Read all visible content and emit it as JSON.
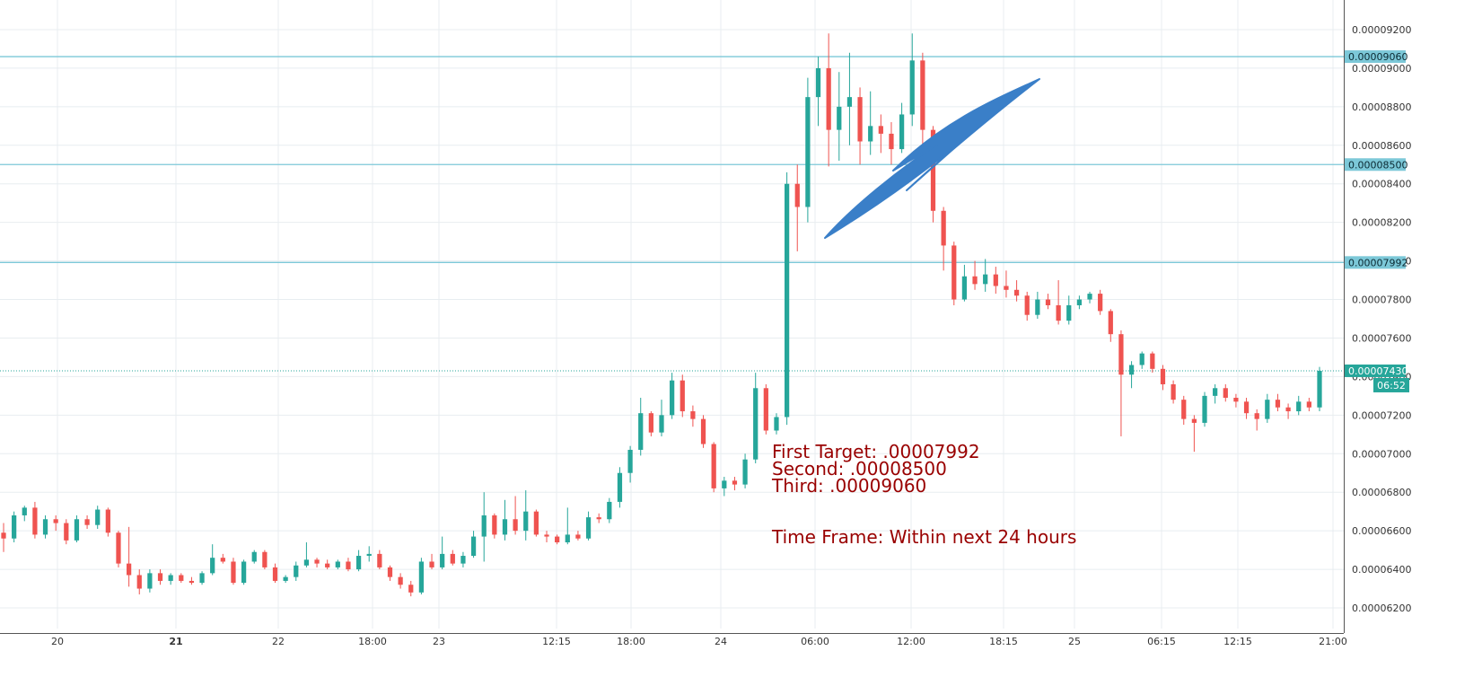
{
  "chart_data": {
    "type": "candlestick",
    "x_ticks": [
      {
        "label": "20",
        "bold": false
      },
      {
        "label": "21",
        "bold": true
      },
      {
        "label": "22",
        "bold": false
      },
      {
        "label": "18:00",
        "bold": false
      },
      {
        "label": "23",
        "bold": false
      },
      {
        "label": "12:15",
        "bold": false
      },
      {
        "label": "18:00",
        "bold": false
      },
      {
        "label": "24",
        "bold": false
      },
      {
        "label": "06:00",
        "bold": false
      },
      {
        "label": "12:00",
        "bold": false
      },
      {
        "label": "18:15",
        "bold": false
      },
      {
        "label": "25",
        "bold": false
      },
      {
        "label": "06:15",
        "bold": false
      },
      {
        "label": "12:15",
        "bold": false
      },
      {
        "label": "21:00",
        "bold": false
      }
    ],
    "y_ticks": [
      "0.00006200",
      "0.00006400",
      "0.00006600",
      "0.00006800",
      "0.00007000",
      "0.00007200",
      "0.00007400",
      "0.00007600",
      "0.00007800",
      "0.00008000",
      "0.00008200",
      "0.00008400",
      "0.00008600",
      "0.00008800",
      "0.00009000",
      "0.00009200"
    ],
    "ylim": [
      6.18e-05,
      9.25e-05
    ],
    "up_color": "#26a69a",
    "down_color": "#ef5350",
    "grid": true,
    "horizontal_lines": [
      {
        "value": 9.06e-05,
        "label": "0.00009060",
        "color": "#7cc8d8"
      },
      {
        "value": 8.5e-05,
        "label": "0.00008500",
        "color": "#7cc8d8"
      },
      {
        "value": 7.992e-05,
        "label": "0.00007992",
        "color": "#7cc8d8"
      }
    ],
    "last_price": {
      "value": 7.43e-05,
      "label": "0.00007430",
      "countdown": "06:52",
      "color": "#26a69a"
    },
    "annotations": [
      "First Target: .00007992",
      "Second: .00008500",
      "Third: .00009060",
      "Time Frame: Within next 24 hours"
    ],
    "annotation_color": "#990000",
    "arrow_color": "#3a7fc8",
    "candles": [
      [
        6.59e-05,
        6.64e-05,
        6.49e-05,
        6.56e-05
      ],
      [
        6.56e-05,
        6.7e-05,
        6.54e-05,
        6.68e-05
      ],
      [
        6.68e-05,
        6.73e-05,
        6.65e-05,
        6.72e-05
      ],
      [
        6.72e-05,
        6.75e-05,
        6.56e-05,
        6.58e-05
      ],
      [
        6.58e-05,
        6.68e-05,
        6.56e-05,
        6.66e-05
      ],
      [
        6.66e-05,
        6.68e-05,
        6.6e-05,
        6.64e-05
      ],
      [
        6.64e-05,
        6.66e-05,
        6.53e-05,
        6.55e-05
      ],
      [
        6.55e-05,
        6.68e-05,
        6.54e-05,
        6.66e-05
      ],
      [
        6.66e-05,
        6.68e-05,
        6.61e-05,
        6.63e-05
      ],
      [
        6.63e-05,
        6.73e-05,
        6.61e-05,
        6.71e-05
      ],
      [
        6.71e-05,
        6.72e-05,
        6.57e-05,
        6.59e-05
      ],
      [
        6.59e-05,
        6.6e-05,
        6.41e-05,
        6.43e-05
      ],
      [
        6.43e-05,
        6.62e-05,
        6.31e-05,
        6.37e-05
      ],
      [
        6.37e-05,
        6.4e-05,
        6.27e-05,
        6.3e-05
      ],
      [
        6.3e-05,
        6.4e-05,
        6.28e-05,
        6.38e-05
      ],
      [
        6.38e-05,
        6.4e-05,
        6.32e-05,
        6.34e-05
      ],
      [
        6.34e-05,
        6.38e-05,
        6.32e-05,
        6.37e-05
      ],
      [
        6.37e-05,
        6.38e-05,
        6.33e-05,
        6.34e-05
      ],
      [
        6.34e-05,
        6.36e-05,
        6.32e-05,
        6.33e-05
      ],
      [
        6.33e-05,
        6.39e-05,
        6.32e-05,
        6.38e-05
      ],
      [
        6.38e-05,
        6.53e-05,
        6.37e-05,
        6.46e-05
      ],
      [
        6.46e-05,
        6.48e-05,
        6.43e-05,
        6.44e-05
      ],
      [
        6.44e-05,
        6.46e-05,
        6.32e-05,
        6.33e-05
      ],
      [
        6.33e-05,
        6.45e-05,
        6.32e-05,
        6.44e-05
      ],
      [
        6.44e-05,
        6.5e-05,
        6.43e-05,
        6.49e-05
      ],
      [
        6.49e-05,
        6.5e-05,
        6.4e-05,
        6.41e-05
      ],
      [
        6.41e-05,
        6.43e-05,
        6.33e-05,
        6.34e-05
      ],
      [
        6.34e-05,
        6.37e-05,
        6.33e-05,
        6.36e-05
      ],
      [
        6.36e-05,
        6.44e-05,
        6.34e-05,
        6.42e-05
      ],
      [
        6.42e-05,
        6.54e-05,
        6.41e-05,
        6.45e-05
      ],
      [
        6.45e-05,
        6.46e-05,
        6.41e-05,
        6.43e-05
      ],
      [
        6.43e-05,
        6.45e-05,
        6.4e-05,
        6.41e-05
      ],
      [
        6.41e-05,
        6.45e-05,
        6.4e-05,
        6.44e-05
      ],
      [
        6.44e-05,
        6.46e-05,
        6.39e-05,
        6.4e-05
      ],
      [
        6.4e-05,
        6.5e-05,
        6.39e-05,
        6.47e-05
      ],
      [
        6.47e-05,
        6.52e-05,
        6.44e-05,
        6.48e-05
      ],
      [
        6.48e-05,
        6.5e-05,
        6.4e-05,
        6.41e-05
      ],
      [
        6.41e-05,
        6.42e-05,
        6.34e-05,
        6.36e-05
      ],
      [
        6.36e-05,
        6.38e-05,
        6.3e-05,
        6.32e-05
      ],
      [
        6.32e-05,
        6.34e-05,
        6.26e-05,
        6.28e-05
      ],
      [
        6.28e-05,
        6.46e-05,
        6.27e-05,
        6.44e-05
      ],
      [
        6.44e-05,
        6.48e-05,
        6.4e-05,
        6.41e-05
      ],
      [
        6.41e-05,
        6.57e-05,
        6.4e-05,
        6.48e-05
      ],
      [
        6.48e-05,
        6.5e-05,
        6.42e-05,
        6.43e-05
      ],
      [
        6.43e-05,
        6.49e-05,
        6.41e-05,
        6.47e-05
      ],
      [
        6.47e-05,
        6.6e-05,
        6.46e-05,
        6.57e-05
      ],
      [
        6.57e-05,
        6.8e-05,
        6.44e-05,
        6.68e-05
      ],
      [
        6.68e-05,
        6.69e-05,
        6.56e-05,
        6.58e-05
      ],
      [
        6.58e-05,
        6.76e-05,
        6.55e-05,
        6.66e-05
      ],
      [
        6.66e-05,
        6.78e-05,
        6.58e-05,
        6.6e-05
      ],
      [
        6.6e-05,
        6.81e-05,
        6.55e-05,
        6.7e-05
      ],
      [
        6.7e-05,
        6.71e-05,
        6.57e-05,
        6.58e-05
      ],
      [
        6.58e-05,
        6.6e-05,
        6.54e-05,
        6.57e-05
      ],
      [
        6.57e-05,
        6.58e-05,
        6.53e-05,
        6.54e-05
      ],
      [
        6.54e-05,
        6.72e-05,
        6.53e-05,
        6.58e-05
      ],
      [
        6.58e-05,
        6.6e-05,
        6.55e-05,
        6.56e-05
      ],
      [
        6.56e-05,
        6.7e-05,
        6.55e-05,
        6.67e-05
      ],
      [
        6.67e-05,
        6.69e-05,
        6.64e-05,
        6.66e-05
      ],
      [
        6.66e-05,
        6.77e-05,
        6.64e-05,
        6.75e-05
      ],
      [
        6.75e-05,
        6.93e-05,
        6.72e-05,
        6.9e-05
      ],
      [
        6.9e-05,
        7.04e-05,
        6.85e-05,
        7.02e-05
      ],
      [
        7.02e-05,
        7.29e-05,
        6.99e-05,
        7.21e-05
      ],
      [
        7.21e-05,
        7.22e-05,
        7.09e-05,
        7.11e-05
      ],
      [
        7.11e-05,
        7.28e-05,
        7.09e-05,
        7.2e-05
      ],
      [
        7.2e-05,
        7.42e-05,
        7.18e-05,
        7.38e-05
      ],
      [
        7.38e-05,
        7.41e-05,
        7.19e-05,
        7.22e-05
      ],
      [
        7.22e-05,
        7.25e-05,
        7.14e-05,
        7.18e-05
      ],
      [
        7.18e-05,
        7.2e-05,
        7.03e-05,
        7.05e-05
      ],
      [
        7.05e-05,
        7.06e-05,
        6.8e-05,
        6.82e-05
      ],
      [
        6.82e-05,
        6.88e-05,
        6.78e-05,
        6.86e-05
      ],
      [
        6.86e-05,
        6.88e-05,
        6.81e-05,
        6.84e-05
      ],
      [
        6.84e-05,
        7e-05,
        6.82e-05,
        6.97e-05
      ],
      [
        6.97e-05,
        7.42e-05,
        6.95e-05,
        7.34e-05
      ],
      [
        7.34e-05,
        7.36e-05,
        7.1e-05,
        7.12e-05
      ],
      [
        7.12e-05,
        7.21e-05,
        7.1e-05,
        7.19e-05
      ],
      [
        7.19e-05,
        8.46e-05,
        7.15e-05,
        8.4e-05
      ],
      [
        8.4e-05,
        8.5e-05,
        8.05e-05,
        8.28e-05
      ],
      [
        8.28e-05,
        8.95e-05,
        8.2e-05,
        8.85e-05
      ],
      [
        8.85e-05,
        9.06e-05,
        8.7e-05,
        9e-05
      ],
      [
        9e-05,
        9.18e-05,
        8.49e-05,
        8.68e-05
      ],
      [
        8.68e-05,
        8.98e-05,
        8.52e-05,
        8.8e-05
      ],
      [
        8.8e-05,
        9.08e-05,
        8.6e-05,
        8.85e-05
      ],
      [
        8.85e-05,
        8.9e-05,
        8.5e-05,
        8.62e-05
      ],
      [
        8.62e-05,
        8.88e-05,
        8.55e-05,
        8.7e-05
      ],
      [
        8.7e-05,
        8.76e-05,
        8.56e-05,
        8.66e-05
      ],
      [
        8.66e-05,
        8.72e-05,
        8.5e-05,
        8.58e-05
      ],
      [
        8.58e-05,
        8.82e-05,
        8.56e-05,
        8.76e-05
      ],
      [
        8.76e-05,
        9.18e-05,
        8.7e-05,
        9.04e-05
      ],
      [
        9.04e-05,
        9.08e-05,
        8.6e-05,
        8.68e-05
      ],
      [
        8.68e-05,
        8.7e-05,
        8.2e-05,
        8.26e-05
      ],
      [
        8.26e-05,
        8.28e-05,
        7.95e-05,
        8.08e-05
      ],
      [
        8.08e-05,
        8.1e-05,
        7.77e-05,
        7.8e-05
      ],
      [
        7.8e-05,
        7.98e-05,
        7.79e-05,
        7.92e-05
      ],
      [
        7.92e-05,
        8e-05,
        7.85e-05,
        7.88e-05
      ],
      [
        7.88e-05,
        8.01e-05,
        7.84e-05,
        7.93e-05
      ],
      [
        7.93e-05,
        7.97e-05,
        7.83e-05,
        7.87e-05
      ],
      [
        7.87e-05,
        7.95e-05,
        7.81e-05,
        7.85e-05
      ],
      [
        7.85e-05,
        7.9e-05,
        7.79e-05,
        7.82e-05
      ],
      [
        7.82e-05,
        7.84e-05,
        7.69e-05,
        7.72e-05
      ],
      [
        7.72e-05,
        7.84e-05,
        7.7e-05,
        7.8e-05
      ],
      [
        7.8e-05,
        7.83e-05,
        7.75e-05,
        7.77e-05
      ],
      [
        7.77e-05,
        7.9e-05,
        7.67e-05,
        7.69e-05
      ],
      [
        7.69e-05,
        7.82e-05,
        7.67e-05,
        7.77e-05
      ],
      [
        7.77e-05,
        7.82e-05,
        7.75e-05,
        7.8e-05
      ],
      [
        7.8e-05,
        7.84e-05,
        7.78e-05,
        7.83e-05
      ],
      [
        7.83e-05,
        7.85e-05,
        7.72e-05,
        7.74e-05
      ],
      [
        7.74e-05,
        7.75e-05,
        7.58e-05,
        7.62e-05
      ],
      [
        7.62e-05,
        7.64e-05,
        7.09e-05,
        7.41e-05
      ],
      [
        7.41e-05,
        7.48e-05,
        7.34e-05,
        7.46e-05
      ],
      [
        7.46e-05,
        7.53e-05,
        7.44e-05,
        7.52e-05
      ],
      [
        7.52e-05,
        7.53e-05,
        7.42e-05,
        7.44e-05
      ],
      [
        7.44e-05,
        7.46e-05,
        7.33e-05,
        7.36e-05
      ],
      [
        7.36e-05,
        7.38e-05,
        7.26e-05,
        7.28e-05
      ],
      [
        7.28e-05,
        7.3e-05,
        7.15e-05,
        7.18e-05
      ],
      [
        7.18e-05,
        7.2e-05,
        7.01e-05,
        7.16e-05
      ],
      [
        7.16e-05,
        7.32e-05,
        7.14e-05,
        7.3e-05
      ],
      [
        7.3e-05,
        7.36e-05,
        7.26e-05,
        7.34e-05
      ],
      [
        7.34e-05,
        7.36e-05,
        7.27e-05,
        7.29e-05
      ],
      [
        7.29e-05,
        7.31e-05,
        7.24e-05,
        7.27e-05
      ],
      [
        7.27e-05,
        7.29e-05,
        7.18e-05,
        7.21e-05
      ],
      [
        7.21e-05,
        7.23e-05,
        7.12e-05,
        7.18e-05
      ],
      [
        7.18e-05,
        7.31e-05,
        7.16e-05,
        7.28e-05
      ],
      [
        7.28e-05,
        7.31e-05,
        7.22e-05,
        7.24e-05
      ],
      [
        7.24e-05,
        7.26e-05,
        7.18e-05,
        7.22e-05
      ],
      [
        7.22e-05,
        7.3e-05,
        7.2e-05,
        7.27e-05
      ],
      [
        7.27e-05,
        7.29e-05,
        7.22e-05,
        7.24e-05
      ],
      [
        7.24e-05,
        7.45e-05,
        7.22e-05,
        7.43e-05
      ]
    ]
  }
}
